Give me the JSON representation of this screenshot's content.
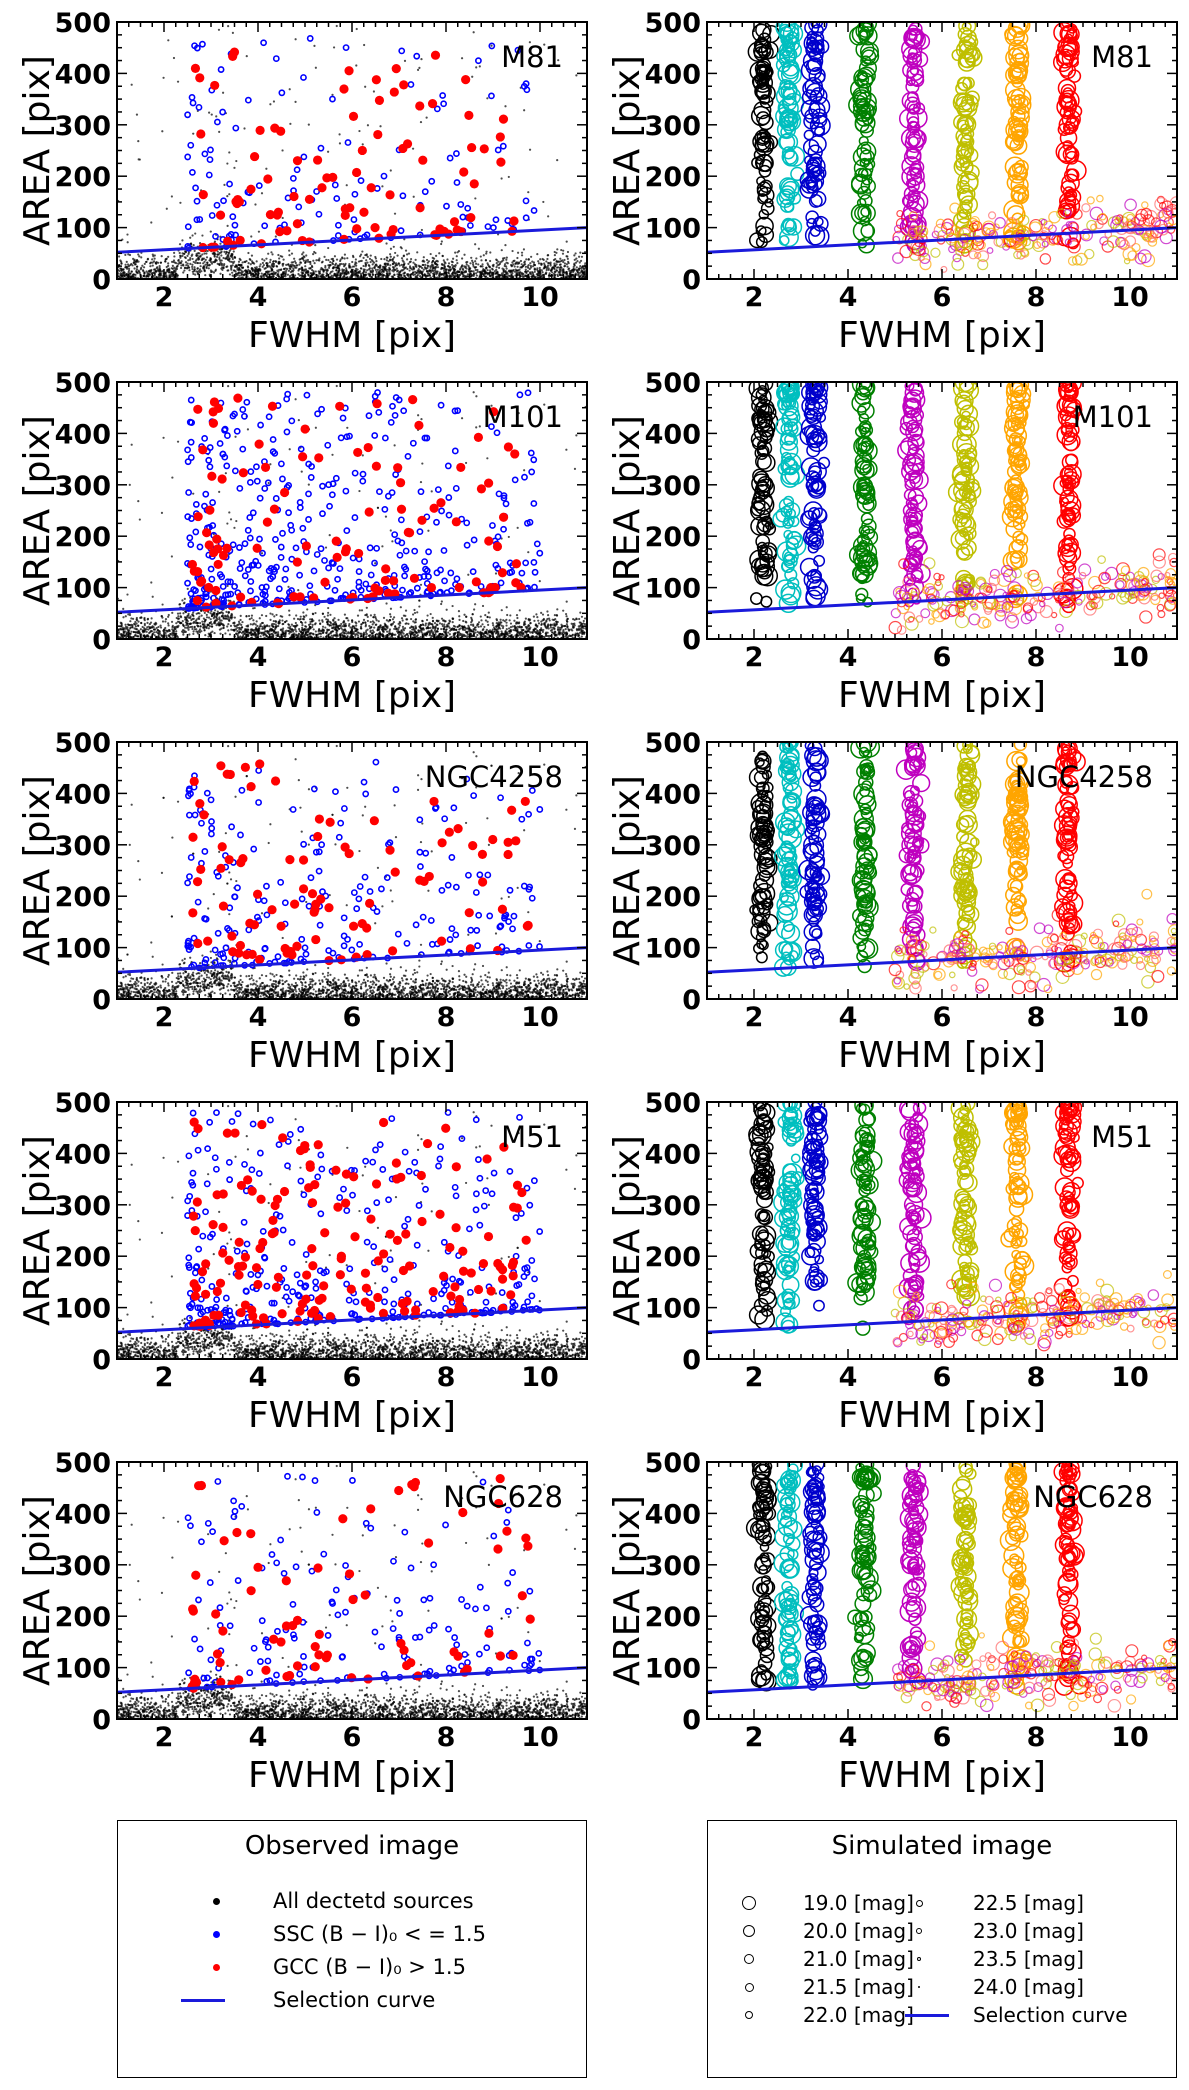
{
  "colors": {
    "all_sources": "#000000",
    "ssc": "#0000ff",
    "gcc": "#ff0000",
    "selection_curve": "#1a1adb",
    "sim_mags": [
      "#000000",
      "#00bfbf",
      "#0000cc",
      "#008000",
      "#bf00bf",
      "#bfbf00",
      "#ffa500",
      "#ff0000",
      "#ff6666"
    ]
  },
  "chart_data": [
    {
      "type": "scatter",
      "panel": "observed",
      "galaxy": "M81",
      "xlabel": "FWHM [pix]",
      "ylabel": "AREA [pix]",
      "xlim": [
        1,
        11
      ],
      "ylim": [
        0,
        500
      ],
      "xticks": [
        2,
        4,
        6,
        8,
        10
      ],
      "yticks": [
        0,
        100,
        200,
        300,
        400,
        500
      ],
      "selection_curve": {
        "x": [
          1,
          11
        ],
        "y": [
          52,
          100
        ]
      }
    },
    {
      "type": "scatter",
      "panel": "simulated",
      "galaxy": "M81",
      "xlabel": "FWHM [pix]",
      "ylabel": "AREA [pix]",
      "xlim": [
        1,
        11
      ],
      "ylim": [
        0,
        500
      ],
      "xticks": [
        2,
        4,
        6,
        8,
        10
      ],
      "yticks": [
        0,
        100,
        200,
        300,
        400,
        500
      ],
      "selection_curve": {
        "x": [
          1,
          11
        ],
        "y": [
          52,
          100
        ]
      }
    },
    {
      "type": "scatter",
      "panel": "observed",
      "galaxy": "M101",
      "xlabel": "FWHM [pix]",
      "ylabel": "AREA [pix]",
      "xlim": [
        1,
        11
      ],
      "ylim": [
        0,
        500
      ],
      "xticks": [
        2,
        4,
        6,
        8,
        10
      ],
      "yticks": [
        0,
        100,
        200,
        300,
        400,
        500
      ],
      "selection_curve": {
        "x": [
          1,
          11
        ],
        "y": [
          52,
          100
        ]
      }
    },
    {
      "type": "scatter",
      "panel": "simulated",
      "galaxy": "M101",
      "xlabel": "FWHM [pix]",
      "ylabel": "AREA [pix]",
      "xlim": [
        1,
        11
      ],
      "ylim": [
        0,
        500
      ],
      "xticks": [
        2,
        4,
        6,
        8,
        10
      ],
      "yticks": [
        0,
        100,
        200,
        300,
        400,
        500
      ],
      "selection_curve": {
        "x": [
          1,
          11
        ],
        "y": [
          52,
          100
        ]
      }
    },
    {
      "type": "scatter",
      "panel": "observed",
      "galaxy": "NGC4258",
      "xlabel": "FWHM [pix]",
      "ylabel": "AREA [pix]",
      "xlim": [
        1,
        11
      ],
      "ylim": [
        0,
        500
      ],
      "xticks": [
        2,
        4,
        6,
        8,
        10
      ],
      "yticks": [
        0,
        100,
        200,
        300,
        400,
        500
      ],
      "selection_curve": {
        "x": [
          1,
          11
        ],
        "y": [
          52,
          100
        ]
      }
    },
    {
      "type": "scatter",
      "panel": "simulated",
      "galaxy": "NGC4258",
      "xlabel": "FWHM [pix]",
      "ylabel": "AREA [pix]",
      "xlim": [
        1,
        11
      ],
      "ylim": [
        0,
        500
      ],
      "xticks": [
        2,
        4,
        6,
        8,
        10
      ],
      "yticks": [
        0,
        100,
        200,
        300,
        400,
        500
      ],
      "selection_curve": {
        "x": [
          1,
          11
        ],
        "y": [
          52,
          100
        ]
      }
    },
    {
      "type": "scatter",
      "panel": "observed",
      "galaxy": "M51",
      "xlabel": "FWHM [pix]",
      "ylabel": "AREA [pix]",
      "xlim": [
        1,
        11
      ],
      "ylim": [
        0,
        500
      ],
      "xticks": [
        2,
        4,
        6,
        8,
        10
      ],
      "yticks": [
        0,
        100,
        200,
        300,
        400,
        500
      ],
      "selection_curve": {
        "x": [
          1,
          11
        ],
        "y": [
          52,
          100
        ]
      }
    },
    {
      "type": "scatter",
      "panel": "simulated",
      "galaxy": "M51",
      "xlabel": "FWHM [pix]",
      "ylabel": "AREA [pix]",
      "xlim": [
        1,
        11
      ],
      "ylim": [
        0,
        500
      ],
      "xticks": [
        2,
        4,
        6,
        8,
        10
      ],
      "yticks": [
        0,
        100,
        200,
        300,
        400,
        500
      ],
      "selection_curve": {
        "x": [
          1,
          11
        ],
        "y": [
          52,
          100
        ]
      }
    },
    {
      "type": "scatter",
      "panel": "observed",
      "galaxy": "NGC628",
      "xlabel": "FWHM [pix]",
      "ylabel": "AREA [pix]",
      "xlim": [
        1,
        11
      ],
      "ylim": [
        0,
        500
      ],
      "xticks": [
        2,
        4,
        6,
        8,
        10
      ],
      "yticks": [
        0,
        100,
        200,
        300,
        400,
        500
      ],
      "selection_curve": {
        "x": [
          1,
          11
        ],
        "y": [
          52,
          100
        ]
      }
    },
    {
      "type": "scatter",
      "panel": "simulated",
      "galaxy": "NGC628",
      "xlabel": "FWHM [pix]",
      "ylabel": "AREA [pix]",
      "xlim": [
        1,
        11
      ],
      "ylim": [
        0,
        500
      ],
      "xticks": [
        2,
        4,
        6,
        8,
        10
      ],
      "yticks": [
        0,
        100,
        200,
        300,
        400,
        500
      ],
      "selection_curve": {
        "x": [
          1,
          11
        ],
        "y": [
          52,
          100
        ]
      }
    }
  ],
  "sim_columns_x": [
    2.2,
    2.75,
    3.3,
    4.35,
    5.4,
    6.5,
    7.6,
    8.7
  ],
  "legend_observed": {
    "title": "Observed image",
    "items": [
      {
        "label": "All dectetd sources",
        "kind": "dot",
        "color": "#000000"
      },
      {
        "label": "SSC (B − I)₀ < = 1.5",
        "kind": "dot",
        "color": "#0000ff"
      },
      {
        "label": "GCC (B − I)₀ > 1.5",
        "kind": "dot",
        "color": "#ff0000"
      },
      {
        "label": "Selection curve",
        "kind": "line",
        "color": "#1a1adb"
      }
    ]
  },
  "legend_simulated": {
    "title": "Simulated image",
    "items_col1": [
      {
        "label": "19.0 [mag]",
        "mag": 19.0
      },
      {
        "label": "20.0 [mag]",
        "mag": 20.0
      },
      {
        "label": "21.0 [mag]",
        "mag": 21.0
      },
      {
        "label": "21.5 [mag]",
        "mag": 21.5
      },
      {
        "label": "22.0 [mag]",
        "mag": 22.0
      }
    ],
    "items_col2": [
      {
        "label": "22.5 [mag]",
        "mag": 22.5
      },
      {
        "label": "23.0 [mag]",
        "mag": 23.0
      },
      {
        "label": "23.5 [mag]",
        "mag": 23.5
      },
      {
        "label": "24.0 [mag]",
        "mag": 24.0
      },
      {
        "label": "Selection curve",
        "kind": "line"
      }
    ]
  }
}
